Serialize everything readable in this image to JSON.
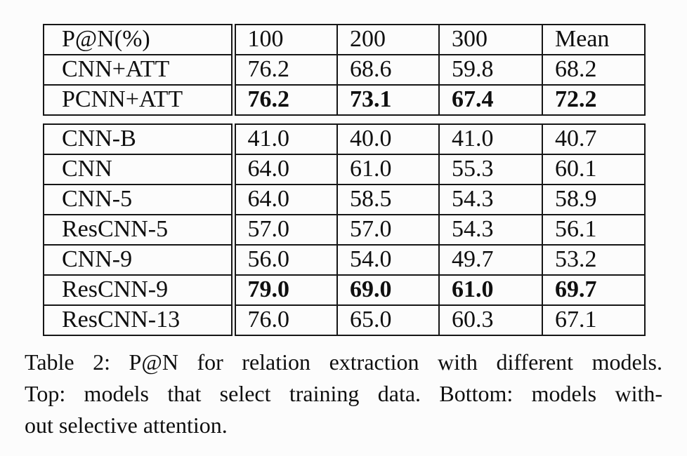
{
  "table": {
    "columns": [
      "P@N(%)",
      "100",
      "200",
      "300",
      "Mean"
    ],
    "top_rows": [
      {
        "model": "CNN+ATT",
        "values": [
          "76.2",
          "68.6",
          "59.8",
          "68.2"
        ],
        "bold": false
      },
      {
        "model": "PCNN+ATT",
        "values": [
          "76.2",
          "73.1",
          "67.4",
          "72.2"
        ],
        "bold": true
      }
    ],
    "bottom_rows": [
      {
        "model": "CNN-B",
        "values": [
          "41.0",
          "40.0",
          "41.0",
          "40.7"
        ],
        "bold": false
      },
      {
        "model": "CNN",
        "values": [
          "64.0",
          "61.0",
          "55.3",
          "60.1"
        ],
        "bold": false
      },
      {
        "model": "CNN-5",
        "values": [
          "64.0",
          "58.5",
          "54.3",
          "58.9"
        ],
        "bold": false
      },
      {
        "model": "ResCNN-5",
        "values": [
          "57.0",
          "57.0",
          "54.3",
          "56.1"
        ],
        "bold": false
      },
      {
        "model": "CNN-9",
        "values": [
          "56.0",
          "54.0",
          "49.7",
          "53.2"
        ],
        "bold": false
      },
      {
        "model": "ResCNN-9",
        "values": [
          "79.0",
          "69.0",
          "61.0",
          "69.7"
        ],
        "bold": true
      },
      {
        "model": "ResCNN-13",
        "values": [
          "76.0",
          "65.0",
          "60.3",
          "67.1"
        ],
        "bold": false
      }
    ]
  },
  "caption": {
    "lines": [
      "Table 2: P@N for relation extraction with different models.",
      "Top: models that select training data. Bottom: models with-",
      "out selective attention."
    ]
  }
}
